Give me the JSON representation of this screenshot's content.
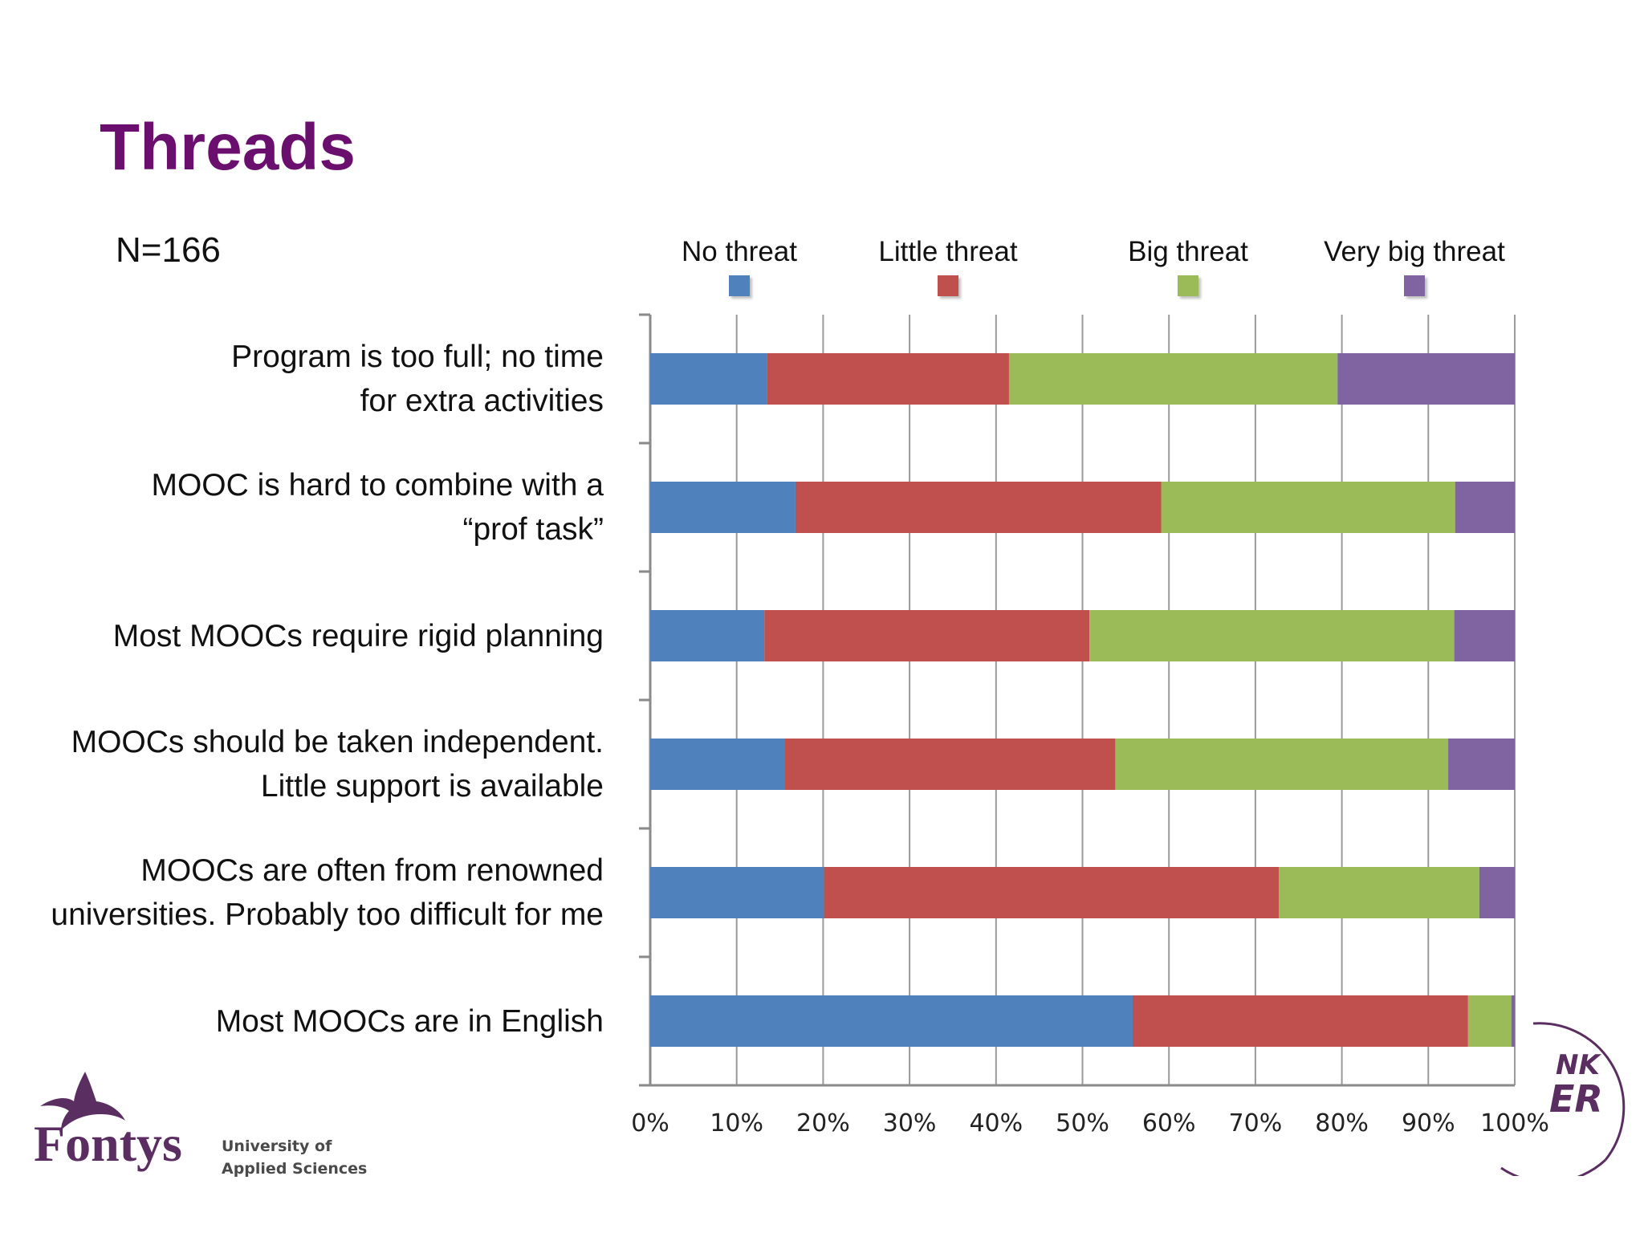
{
  "slide": {
    "title": "Threads",
    "n_label": "N=166"
  },
  "chart_data": {
    "type": "bar",
    "orientation": "horizontal",
    "stacked": "percent",
    "categories": [
      [
        "Program is too full; no time",
        "for extra activities"
      ],
      [
        "MOOC is hard to combine with a",
        "“prof task”"
      ],
      [
        "Most MOOCs require rigid planning"
      ],
      [
        "MOOCs should be taken independent.",
        "Little support is available"
      ],
      [
        "MOOCs are often from renowned",
        "universities. Probably too difficult for me"
      ],
      [
        "Most MOOCs are in English"
      ]
    ],
    "series": [
      {
        "name": "No threat",
        "color": "#4f81bd",
        "values": [
          13.5,
          16.8,
          13.2,
          15.6,
          20.1,
          55.8
        ]
      },
      {
        "name": "Little threat",
        "color": "#c0504d",
        "values": [
          28.0,
          42.3,
          37.6,
          38.2,
          52.6,
          38.8
        ]
      },
      {
        "name": "Big threat",
        "color": "#9bbb59",
        "values": [
          38.0,
          34.0,
          42.2,
          38.5,
          23.2,
          5.0
        ]
      },
      {
        "name": "Very big threat",
        "color": "#8064a2",
        "values": [
          20.5,
          6.9,
          7.0,
          7.7,
          4.1,
          0.4
        ]
      }
    ],
    "x_ticks": [
      "0%",
      "10%",
      "20%",
      "30%",
      "40%",
      "50%",
      "60%",
      "70%",
      "80%",
      "90%",
      "100%"
    ],
    "xlim": [
      0,
      100
    ],
    "grid": true,
    "legend_position": "top"
  },
  "logo": {
    "wordmark": "Fontys",
    "subtitle_line1": "University of",
    "subtitle_line2": "Applied Sciences"
  },
  "corner_badge": {
    "partial_text_1": "NK",
    "partial_text_2": "ER"
  }
}
